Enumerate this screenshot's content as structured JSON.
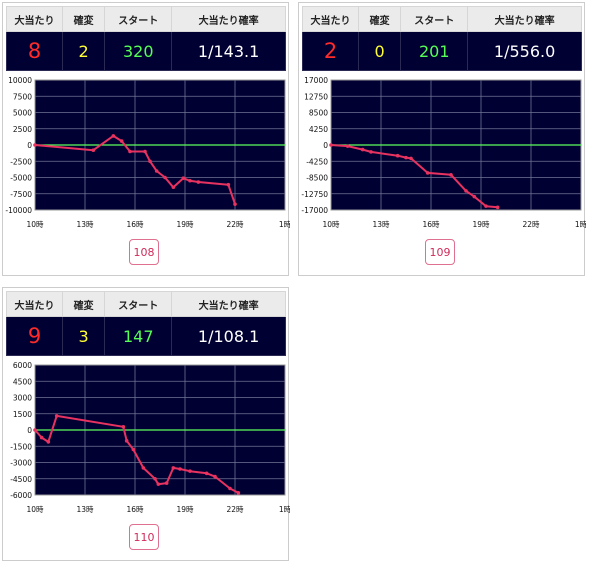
{
  "headers": {
    "big": "大当たり",
    "kakuhen": "確変",
    "start": "スタート",
    "rate": "大当たり確率"
  },
  "colors": {
    "plot_bg": "#000033",
    "line": "#e8325f",
    "zero": "#5cff5c",
    "grid": "#6f7494"
  },
  "machines": [
    {
      "big": "8",
      "kakuhen": "2",
      "start": "320",
      "rate": "1/143.1",
      "number": "108",
      "chart_data": {
        "type": "line",
        "x_ticks": [
          "10時",
          "13時",
          "16時",
          "19時",
          "22時",
          "1時"
        ],
        "y_ticks": [
          "10000",
          "7500",
          "5000",
          "2500",
          "0",
          "-2500",
          "-5000",
          "-7500",
          "-10000"
        ],
        "xlim": [
          10,
          25
        ],
        "ylim": [
          -10000,
          10000
        ],
        "series": [
          {
            "x": [
              10,
              13.5,
              14.7,
              15.2,
              15.7,
              16.6,
              16.9,
              17.3,
              17.8,
              18.3,
              18.9,
              19.3,
              19.8,
              21.6,
              22.0
            ],
            "y": [
              0,
              -800,
              1400,
              600,
              -1000,
              -1000,
              -2500,
              -4000,
              -5000,
              -6500,
              -5100,
              -5500,
              -5700,
              -6100,
              -9100
            ]
          }
        ]
      }
    },
    {
      "big": "2",
      "kakuhen": "0",
      "start": "201",
      "rate": "1/556.0",
      "number": "109",
      "chart_data": {
        "type": "line",
        "x_ticks": [
          "10時",
          "13時",
          "16時",
          "19時",
          "22時",
          "1時"
        ],
        "y_ticks": [
          "17000",
          "12750",
          "8500",
          "4250",
          "0",
          "-4250",
          "-8500",
          "-12750",
          "-17000"
        ],
        "xlim": [
          10,
          25
        ],
        "ylim": [
          -17000,
          17000
        ],
        "series": [
          {
            "x": [
              10,
              11,
              11.9,
              12.4,
              14,
              14.5,
              14.8,
              15.8,
              17.2,
              18.1,
              18.6,
              19.3,
              20
            ],
            "y": [
              0,
              -300,
              -1200,
              -1800,
              -2800,
              -3300,
              -3500,
              -7300,
              -7800,
              -12000,
              -13500,
              -16000,
              -16300
            ]
          }
        ]
      }
    },
    {
      "big": "9",
      "kakuhen": "3",
      "start": "147",
      "rate": "1/108.1",
      "number": "110",
      "chart_data": {
        "type": "line",
        "x_ticks": [
          "10時",
          "13時",
          "16時",
          "19時",
          "22時",
          "1時"
        ],
        "y_ticks": [
          "6000",
          "4500",
          "3000",
          "1500",
          "0",
          "-1500",
          "-3000",
          "-4500",
          "-6000"
        ],
        "xlim": [
          10,
          25
        ],
        "ylim": [
          -6000,
          6000
        ],
        "series": [
          {
            "x": [
              10,
              10.4,
              10.8,
              11.3,
              15.3,
              15.5,
              15.9,
              16.5,
              17.2,
              17.4,
              17.9,
              18.3,
              18.7,
              19.3,
              20.3,
              20.8,
              21.7,
              22.2
            ],
            "y": [
              0,
              -700,
              -1100,
              1300,
              300,
              -1000,
              -1800,
              -3500,
              -4500,
              -5000,
              -4900,
              -3500,
              -3600,
              -3800,
              -4000,
              -4300,
              -5400,
              -5800
            ]
          }
        ]
      }
    }
  ]
}
